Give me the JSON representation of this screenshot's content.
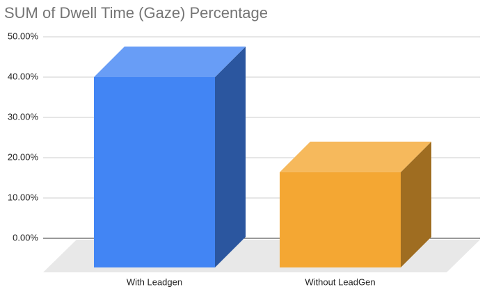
{
  "chart_data": {
    "type": "bar3d",
    "title": "SUM of Dwell Time (Gaze) Percentage",
    "categories": [
      "With Leadgen",
      "Without LeadGen"
    ],
    "values": [
      40,
      16.4
    ],
    "colors": [
      "#4285f4",
      "#f4a733"
    ],
    "ylim": [
      0,
      50
    ],
    "yticks": [
      {
        "value": 0,
        "label": "0.00%"
      },
      {
        "value": 10,
        "label": "10.00%"
      },
      {
        "value": 20,
        "label": "20.00%"
      },
      {
        "value": 30,
        "label": "30.00%"
      },
      {
        "value": 40,
        "label": "40.00%"
      },
      {
        "value": 50,
        "label": "50.00%"
      }
    ],
    "grid": true
  }
}
